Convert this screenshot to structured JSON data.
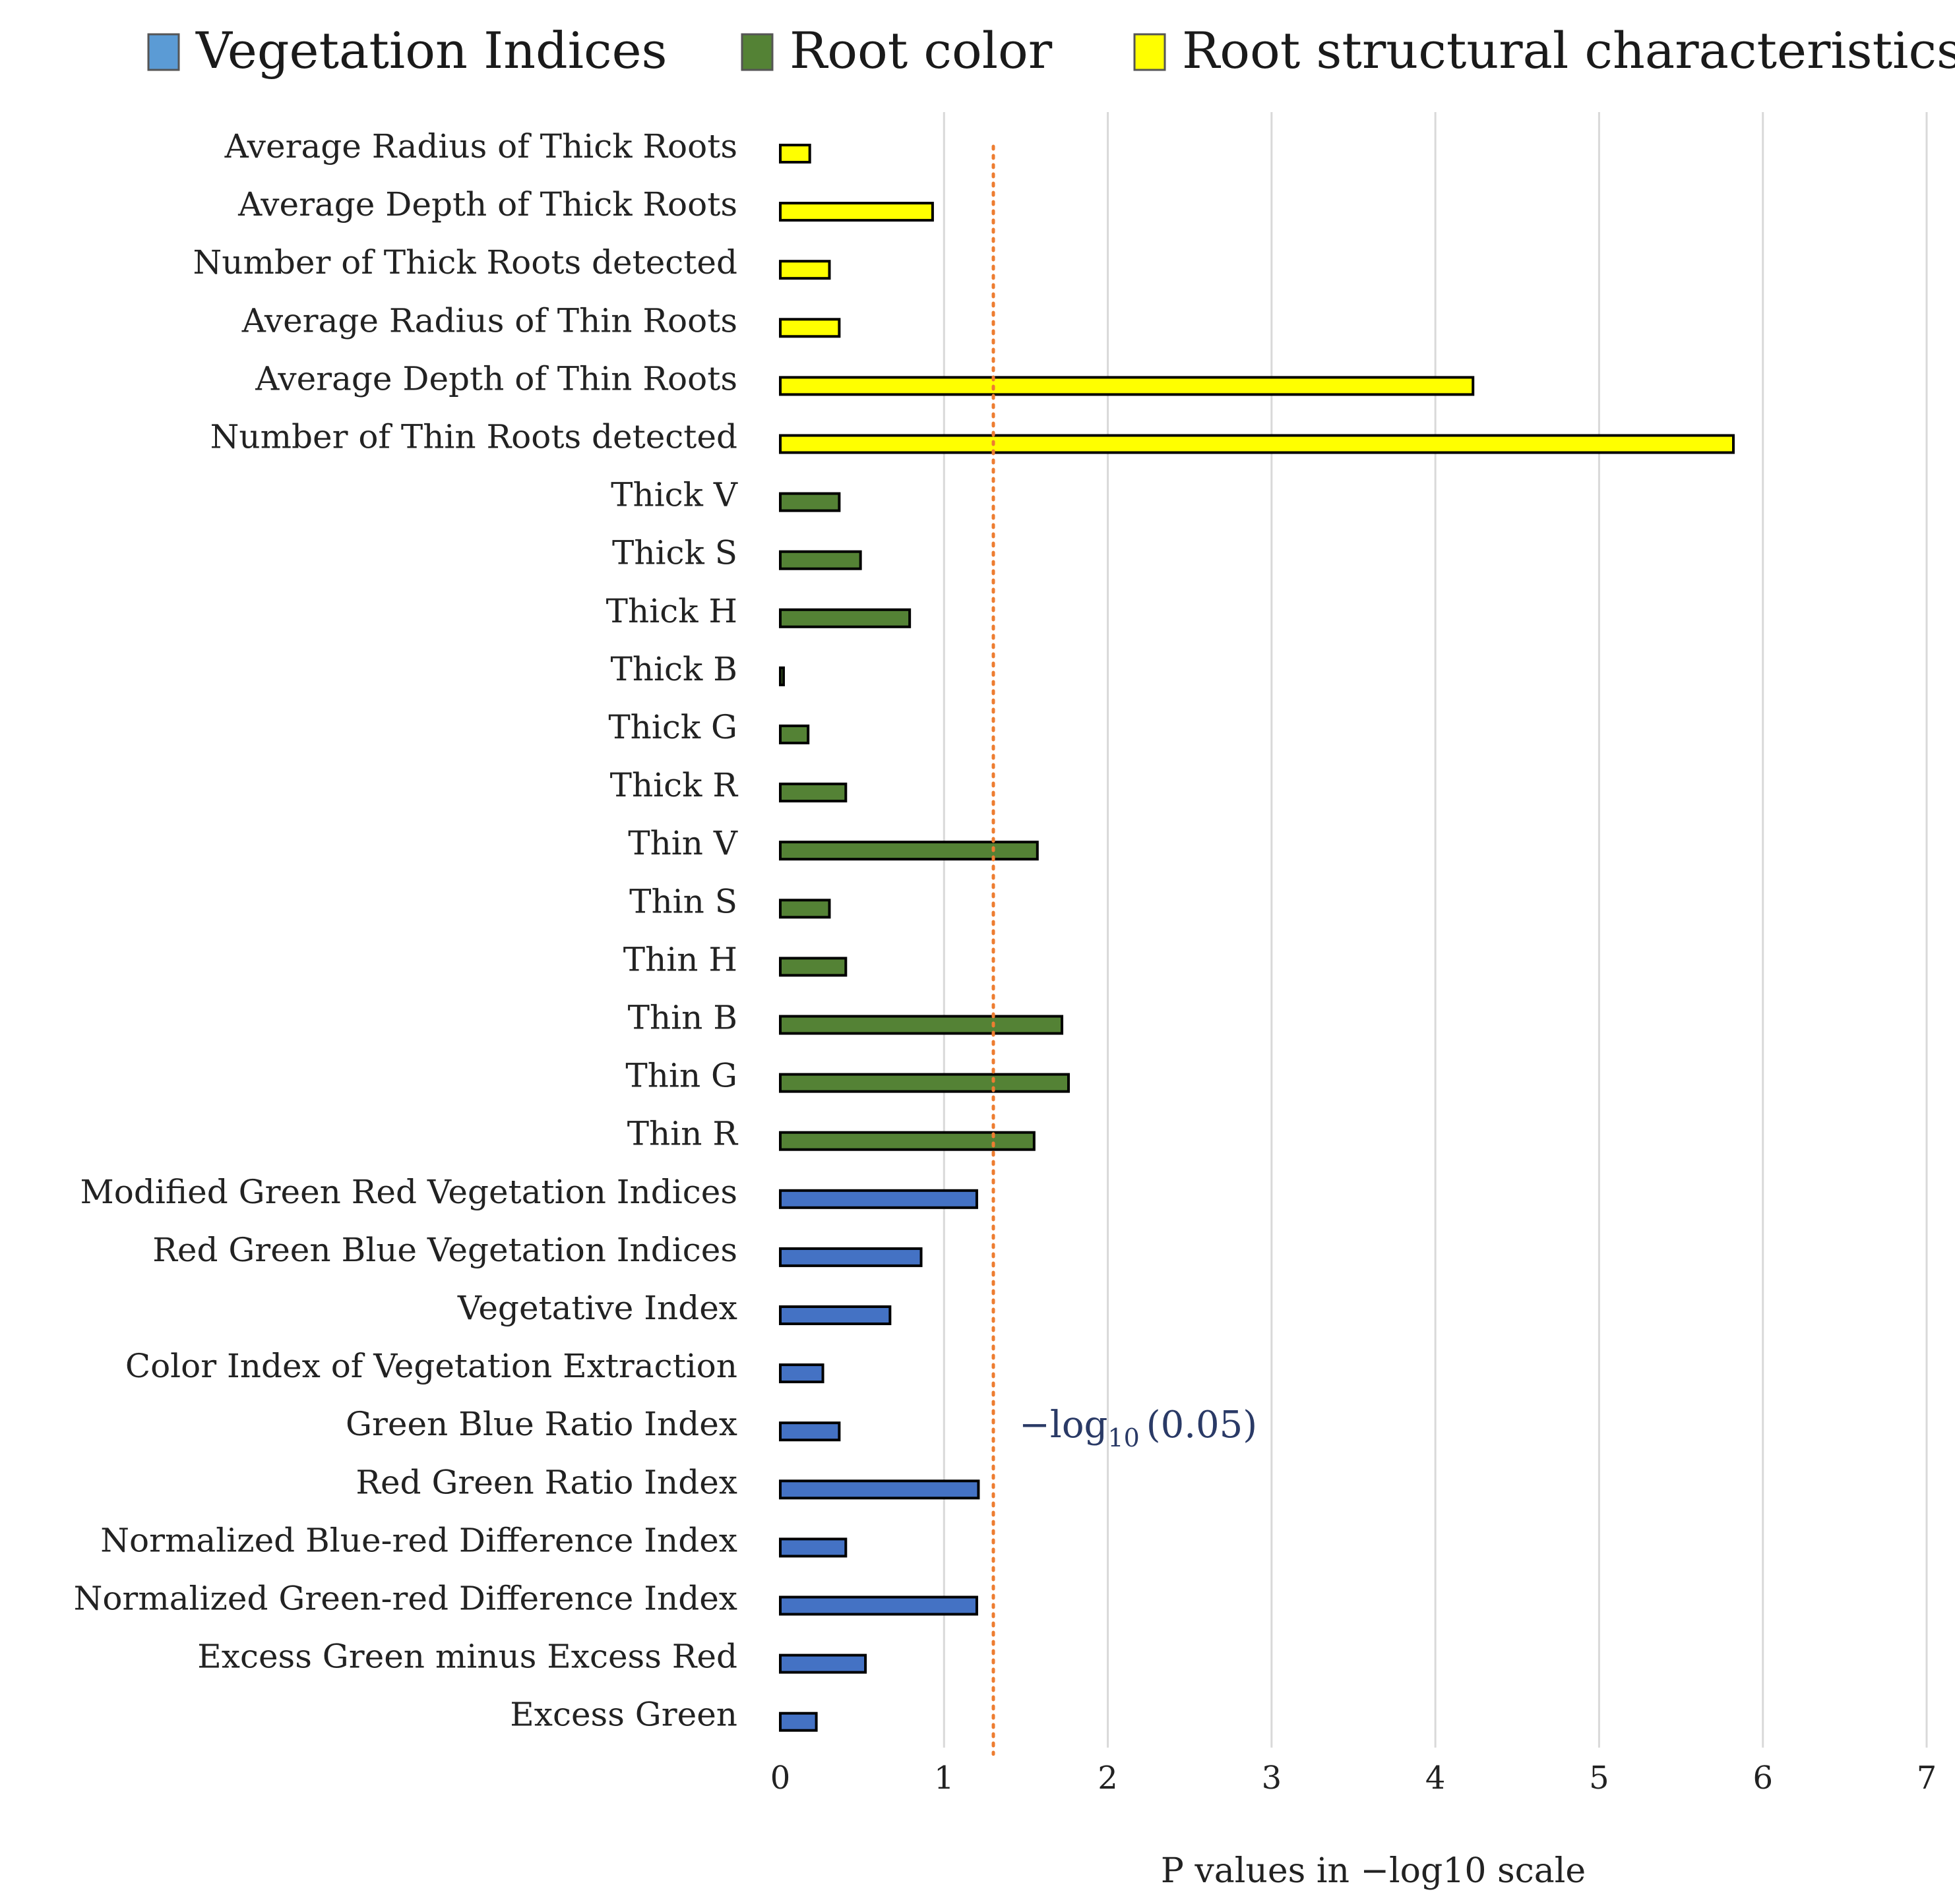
{
  "chart_data": {
    "type": "bar",
    "orientation": "horizontal",
    "title": "",
    "xlabel": "P values in −log10 scale",
    "ylabel": "",
    "xlim": [
      0,
      7
    ],
    "xticks": [
      0,
      1,
      2,
      3,
      4,
      5,
      6,
      7
    ],
    "grid": true,
    "legend_position": "top",
    "groups": [
      {
        "name": "Vegetation Indices",
        "color": "#4472C4",
        "legend_color": "#5B9BD5"
      },
      {
        "name": "Root color",
        "color": "#548235",
        "legend_color": "#548235"
      },
      {
        "name": "Root structural characteristics",
        "color": "#FFFF00",
        "legend_color": "#FFFF00"
      }
    ],
    "categories": [
      {
        "label": "Average Radius of Thick Roots",
        "group": "Root structural characteristics",
        "value": 0.18
      },
      {
        "label": "Average Depth of Thick Roots",
        "group": "Root structural characteristics",
        "value": 0.93
      },
      {
        "label": "Number of Thick Roots detected",
        "group": "Root structural characteristics",
        "value": 0.3
      },
      {
        "label": "Average Radius of Thin Roots",
        "group": "Root structural characteristics",
        "value": 0.36
      },
      {
        "label": "Average Depth of Thin Roots",
        "group": "Root structural characteristics",
        "value": 4.23
      },
      {
        "label": "Number of Thin Roots detected",
        "group": "Root structural characteristics",
        "value": 5.82
      },
      {
        "label": "Thick V",
        "group": "Root color",
        "value": 0.36
      },
      {
        "label": "Thick S",
        "group": "Root color",
        "value": 0.49
      },
      {
        "label": "Thick H",
        "group": "Root color",
        "value": 0.79
      },
      {
        "label": "Thick B",
        "group": "Root color",
        "value": 0.02
      },
      {
        "label": "Thick G",
        "group": "Root color",
        "value": 0.17
      },
      {
        "label": "Thick R",
        "group": "Root color",
        "value": 0.4
      },
      {
        "label": "Thin V",
        "group": "Root color",
        "value": 1.57
      },
      {
        "label": "Thin S",
        "group": "Root color",
        "value": 0.3
      },
      {
        "label": "Thin H",
        "group": "Root color",
        "value": 0.4
      },
      {
        "label": "Thin B",
        "group": "Root color",
        "value": 1.72
      },
      {
        "label": "Thin G",
        "group": "Root color",
        "value": 1.76
      },
      {
        "label": "Thin R",
        "group": "Root color",
        "value": 1.55
      },
      {
        "label": "Modified Green Red Vegetation Indices",
        "group": "Vegetation Indices",
        "value": 1.2
      },
      {
        "label": "Red Green Blue Vegetation Indices",
        "group": "Vegetation Indices",
        "value": 0.86
      },
      {
        "label": "Vegetative Index",
        "group": "Vegetation Indices",
        "value": 0.67
      },
      {
        "label": "Color Index of Vegetation Extraction",
        "group": "Vegetation Indices",
        "value": 0.26
      },
      {
        "label": "Green Blue Ratio Index",
        "group": "Vegetation Indices",
        "value": 0.36
      },
      {
        "label": "Red Green Ratio Index",
        "group": "Vegetation Indices",
        "value": 1.21
      },
      {
        "label": "Normalized Blue-red Difference Index",
        "group": "Vegetation Indices",
        "value": 0.4
      },
      {
        "label": "Normalized Green-red Difference Index",
        "group": "Vegetation Indices",
        "value": 1.2
      },
      {
        "label": "Excess Green minus Excess Red",
        "group": "Vegetation Indices",
        "value": 0.52
      },
      {
        "label": "Excess Green",
        "group": "Vegetation Indices",
        "value": 0.22
      }
    ],
    "reference_line": {
      "value": 1.301,
      "color": "#ED7D31",
      "style": "dotted",
      "label_main": "−log",
      "label_sub": "10",
      "label_tail": "(0.05)"
    }
  }
}
